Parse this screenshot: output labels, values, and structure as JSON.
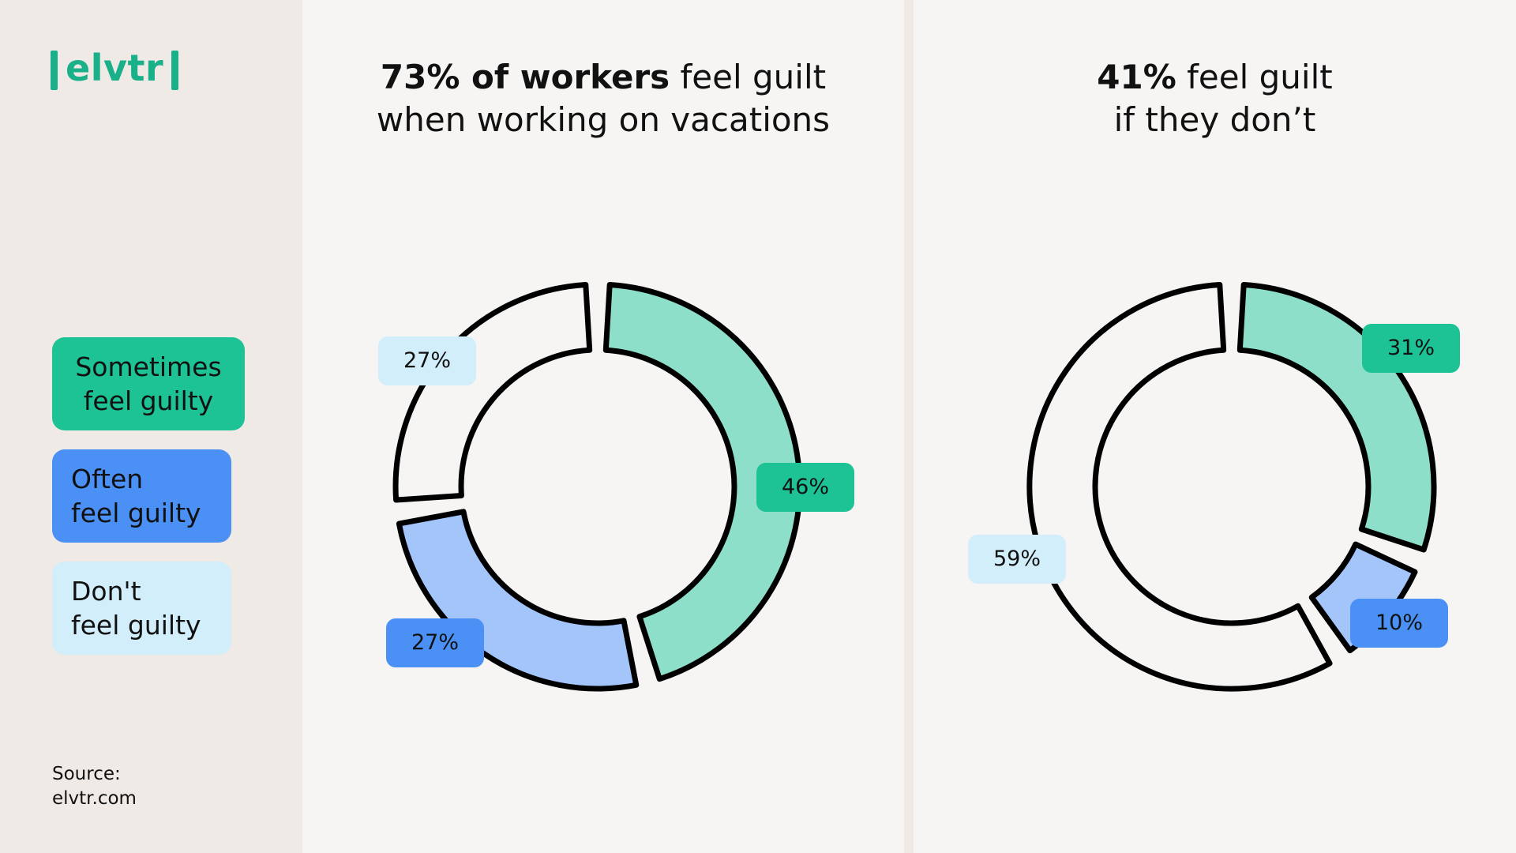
{
  "logo": {
    "text": "elvtr"
  },
  "colors": {
    "sometimes": "#1dc295",
    "sometimes_fill": "#8ddfca",
    "often": "#4a90f5",
    "often_fill": "#a3c5fa",
    "dont": "#d2eefa",
    "dont_fill": "#f7f5f3",
    "stroke": "#000000"
  },
  "legend": {
    "sometimes": {
      "line1": "Sometimes",
      "line2": "feel guilty"
    },
    "often": {
      "line1": "Often",
      "line2": "feel guilty"
    },
    "dont": {
      "line1": "Don't",
      "line2": "feel guilty"
    }
  },
  "source": {
    "line1": "Source:",
    "line2": "elvtr.com"
  },
  "chart_data": [
    {
      "type": "pie",
      "variant": "donut",
      "title_bold": "73% of workers",
      "title_rest": " feel guilt",
      "title_line2": "when working on vacations",
      "slices": [
        {
          "category": "sometimes",
          "value": 46,
          "label": "46%"
        },
        {
          "category": "often",
          "value": 27,
          "label": "27%"
        },
        {
          "category": "dont",
          "value": 27,
          "label": "27%"
        }
      ]
    },
    {
      "type": "pie",
      "variant": "donut",
      "title_bold": "41%",
      "title_rest": " feel guilt",
      "title_line2": "if they don’t",
      "slices": [
        {
          "category": "sometimes",
          "value": 31,
          "label": "31%"
        },
        {
          "category": "often",
          "value": 10,
          "label": "10%"
        },
        {
          "category": "dont",
          "value": 59,
          "label": "59%"
        }
      ]
    }
  ]
}
